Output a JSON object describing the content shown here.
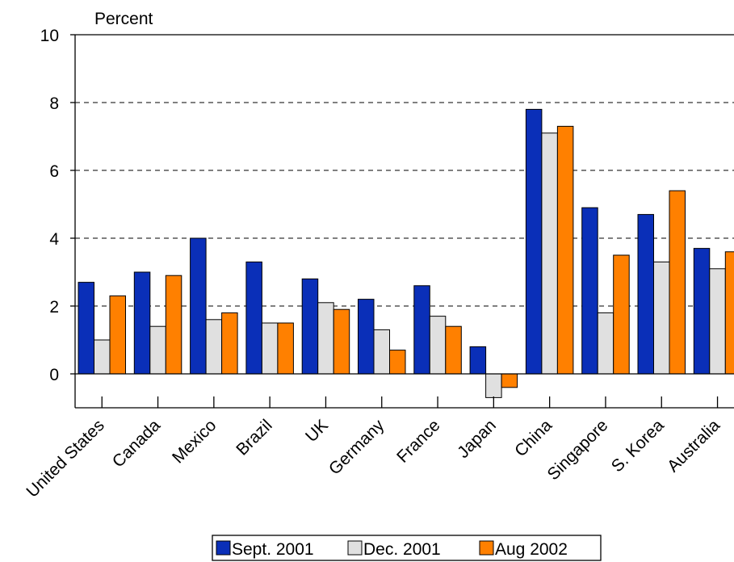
{
  "chart_data": {
    "type": "bar",
    "ylabel": "Percent",
    "ylim": [
      -1,
      10
    ],
    "yticks": [
      0,
      2,
      4,
      6,
      8,
      10
    ],
    "grid": "dashed horizontal",
    "legend_position": "bottom",
    "categories": [
      "United States",
      "Canada",
      "Mexico",
      "Brazil",
      "UK",
      "Germany",
      "France",
      "Japan",
      "China",
      "Singapore",
      "S. Korea",
      "Australia"
    ],
    "series": [
      {
        "name": "Sept. 2001",
        "color": "#0a2fb8",
        "values": [
          2.7,
          3.0,
          4.0,
          3.3,
          2.8,
          2.2,
          2.6,
          0.8,
          7.8,
          4.9,
          4.7,
          3.7
        ]
      },
      {
        "name": "Dec. 2001",
        "color": "#e0e0e0",
        "values": [
          1.0,
          1.4,
          1.6,
          1.5,
          2.1,
          1.3,
          1.7,
          -0.7,
          7.1,
          1.8,
          3.3,
          3.1
        ]
      },
      {
        "name": "Aug 2002",
        "color": "#ff8000",
        "values": [
          2.3,
          2.9,
          1.8,
          1.5,
          1.9,
          0.7,
          1.4,
          -0.4,
          7.3,
          3.5,
          5.4,
          3.6
        ]
      }
    ]
  }
}
